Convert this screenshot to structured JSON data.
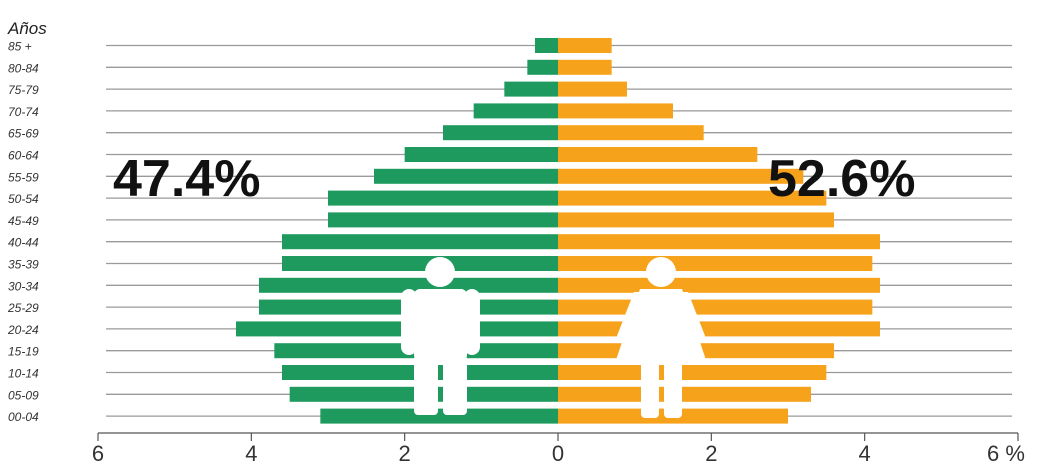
{
  "chart_data": {
    "type": "bar",
    "orientation": "horizontal-pyramid",
    "y_axis_title": "Años",
    "x_axis_unit_label": "%",
    "xlim": [
      -6,
      6
    ],
    "x_ticks": [
      {
        "value": -6,
        "label": "6"
      },
      {
        "value": -4,
        "label": "4"
      },
      {
        "value": -2,
        "label": "2"
      },
      {
        "value": 0,
        "label": "0"
      },
      {
        "value": 2,
        "label": "2"
      },
      {
        "value": 4,
        "label": "4"
      },
      {
        "value": 6,
        "label": "6 %"
      }
    ],
    "categories": [
      "85 +",
      "80-84",
      "75-79",
      "70-74",
      "65-69",
      "60-64",
      "55-59",
      "50-54",
      "45-49",
      "40-44",
      "35-39",
      "30-34",
      "25-29",
      "20-24",
      "15-19",
      "10-14",
      "05-09",
      "00-04"
    ],
    "series": [
      {
        "side": "left",
        "color": "#1e9a5e",
        "total_label": "47.4%",
        "icon": "man-icon",
        "values": [
          0.3,
          0.4,
          0.7,
          1.1,
          1.5,
          2.0,
          2.4,
          3.0,
          3.0,
          3.6,
          3.6,
          3.9,
          3.9,
          4.2,
          3.7,
          3.6,
          3.5,
          3.1
        ]
      },
      {
        "side": "right",
        "color": "#f7a21b",
        "total_label": "52.6%",
        "icon": "woman-icon",
        "values": [
          0.7,
          0.7,
          0.9,
          1.5,
          1.9,
          2.6,
          3.2,
          3.5,
          3.6,
          4.2,
          4.1,
          4.2,
          4.1,
          4.2,
          3.6,
          3.5,
          3.3,
          3.0
        ]
      }
    ],
    "gridlines": true
  }
}
